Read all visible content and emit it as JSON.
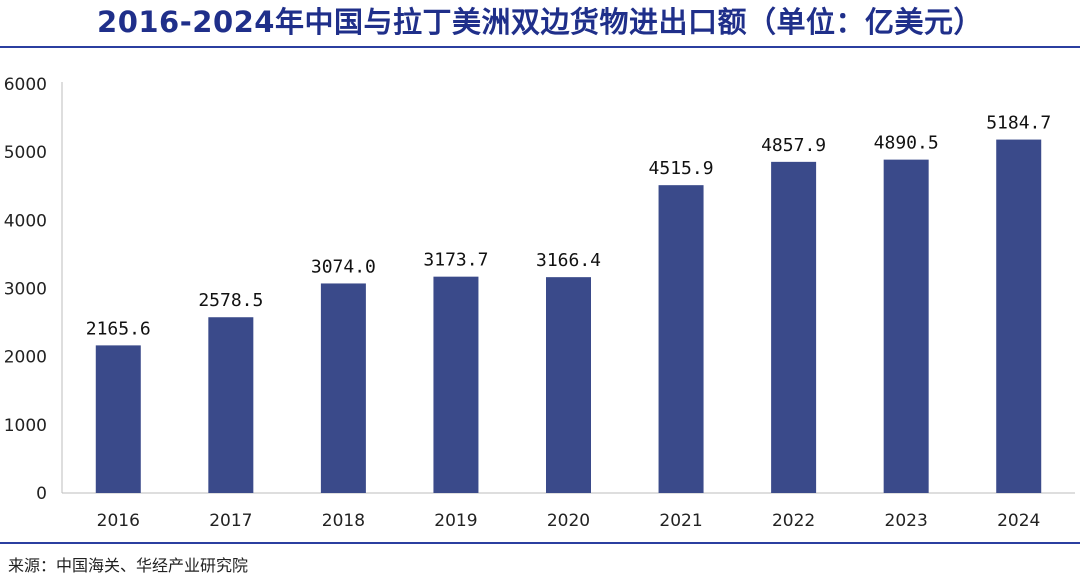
{
  "title": "2016-2024年中国与拉丁美洲双边货物进出口额（单位：亿美元）",
  "source": "来源：中国海关、华经产业研究院",
  "colors": {
    "bar": "#3a4a8a",
    "title": "#1f2f8a",
    "rule": "#2b3fa0"
  },
  "chart_data": {
    "type": "bar",
    "title": "2016-2024年中国与拉丁美洲双边货物进出口额（单位：亿美元）",
    "categories": [
      "2016",
      "2017",
      "2018",
      "2019",
      "2020",
      "2021",
      "2022",
      "2023",
      "2024"
    ],
    "values": [
      2165.6,
      2578.5,
      3074.0,
      3173.7,
      3166.4,
      4515.9,
      4857.9,
      4890.5,
      5184.7
    ],
    "data_labels": [
      "2165.6",
      "2578.5",
      "3074.0",
      "3173.7",
      "3166.4",
      "4515.9",
      "4857.9",
      "4890.5",
      "5184.7"
    ],
    "ylim": [
      0,
      6000
    ],
    "yticks": [
      0,
      1000,
      2000,
      3000,
      4000,
      5000,
      6000
    ],
    "grid": false,
    "legend": "none"
  }
}
